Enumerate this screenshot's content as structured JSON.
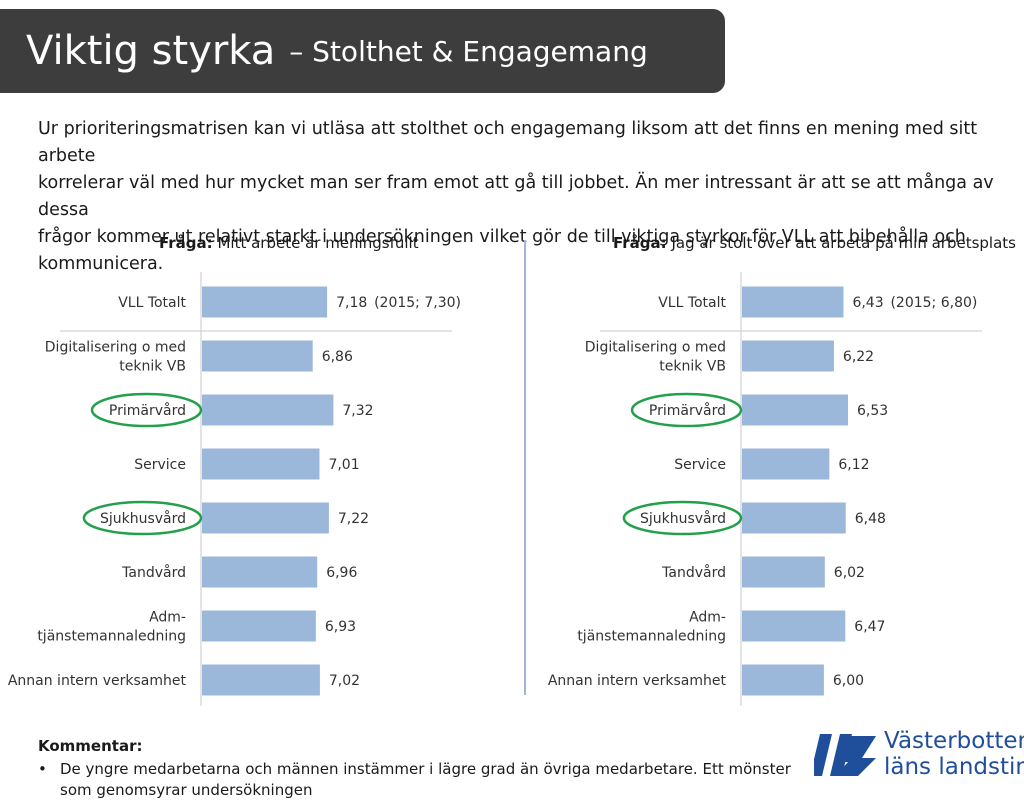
{
  "header": {
    "title": "Viktig styrka",
    "subtitle": "– Stolthet & Engagemang"
  },
  "intro": "Ur prioriteringsmatrisen kan vi utläsa att stolthet och engagemang liksom att det finns en mening med sitt arbete\nkorrelerar väl med hur mycket man ser fram emot att gå till jobbet. Än mer intressant är att se att många av dessa\nfrågor kommer ut relativt starkt i undersökningen vilket gör de till viktiga styrkor för VLL att bibehålla och\nkommunicera.",
  "chart_data": [
    {
      "type": "bar",
      "orientation": "horizontal",
      "title_prefix": "Fråga:",
      "title": "Mitt arbete är meningsfullt",
      "categories": [
        "VLL Totalt",
        "Digitalisering o med teknik VB",
        "Primärvård",
        "Service",
        "Sjukhusvård",
        "Tandvård",
        "Adm-tjänstemannaledning",
        "Annan intern verksamhet"
      ],
      "category_lines": [
        [
          "VLL Totalt"
        ],
        [
          "Digitalisering o med",
          "teknik VB"
        ],
        [
          "Primärvård"
        ],
        [
          "Service"
        ],
        [
          "Sjukhusvård"
        ],
        [
          "Tandvård"
        ],
        [
          "Adm-",
          "tjänstemannaledning"
        ],
        [
          "Annan intern verksamhet"
        ]
      ],
      "values": [
        7.18,
        6.86,
        7.32,
        7.01,
        7.22,
        6.96,
        6.93,
        7.02
      ],
      "value_labels": [
        "7,18",
        "6,86",
        "7,32",
        "7,01",
        "7,22",
        "6,96",
        "6,93",
        "7,02"
      ],
      "annotations": [
        "(2015; 7,30)",
        "",
        "",
        "",
        "",
        "",
        "",
        ""
      ],
      "highlighted": [
        "Primärvård",
        "Sjukhusvård"
      ],
      "bar_color": "#9bb7d9",
      "highlight_color": "#23a04a"
    },
    {
      "type": "bar",
      "orientation": "horizontal",
      "title_prefix": "Fråga:",
      "title": "Jag är stolt över att arbeta på min arbetsplats",
      "categories": [
        "VLL Totalt",
        "Digitalisering o med teknik VB",
        "Primärvård",
        "Service",
        "Sjukhusvård",
        "Tandvård",
        "Adm-tjänstemannaledning",
        "Annan intern verksamhet"
      ],
      "category_lines": [
        [
          "VLL Totalt"
        ],
        [
          "Digitalisering o med",
          "teknik VB"
        ],
        [
          "Primärvård"
        ],
        [
          "Service"
        ],
        [
          "Sjukhusvård"
        ],
        [
          "Tandvård"
        ],
        [
          "Adm-",
          "tjänstemannaledning"
        ],
        [
          "Annan intern verksamhet"
        ]
      ],
      "values": [
        6.43,
        6.22,
        6.53,
        6.12,
        6.48,
        6.02,
        6.47,
        6.0
      ],
      "value_labels": [
        "6,43",
        "6,22",
        "6,53",
        "6,12",
        "6,48",
        "6,02",
        "6,47",
        "6,00"
      ],
      "annotations": [
        "(2015; 6,80)",
        "",
        "",
        "",
        "",
        "",
        "",
        ""
      ],
      "highlighted": [
        "Primärvård",
        "Sjukhusvård"
      ],
      "bar_color": "#9bb7d9",
      "highlight_color": "#23a04a"
    }
  ],
  "comment": {
    "heading": "Kommentar:",
    "items": [
      "De yngre medarbetarna och männen instämmer i lägre grad än övriga medarbetare. Ett mönster som genomsyrar undersökningen"
    ]
  },
  "logo": {
    "line1": "Västerbottens",
    "line2": "läns landsting",
    "color": "#1f4e9b"
  }
}
